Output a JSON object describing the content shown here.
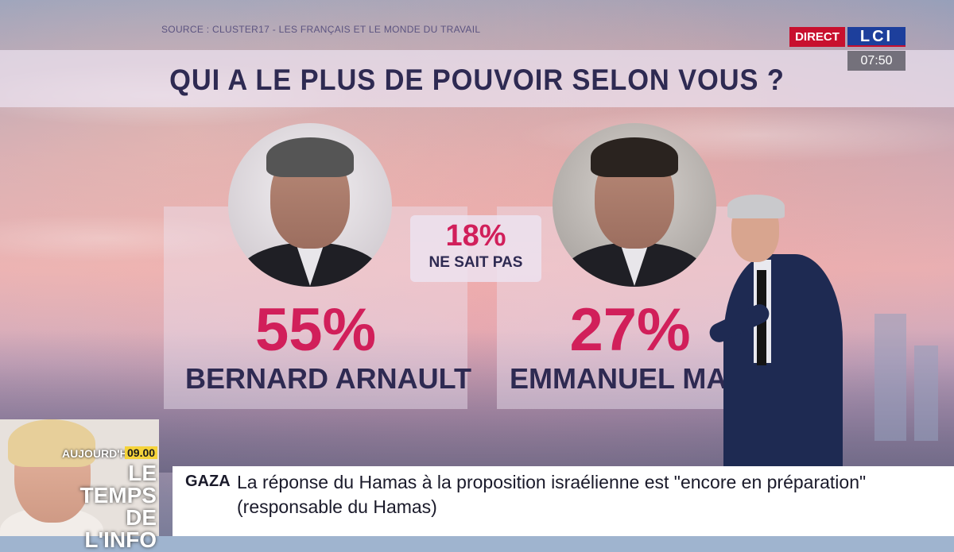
{
  "source": "SOURCE : CLUSTER17 - LES FRANÇAIS ET LE MONDE DU TRAVAIL",
  "title": "QUI A LE PLUS DE POUVOIR SELON VOUS ?",
  "channel": {
    "direct_label": "DIRECT",
    "logo_text": "LCI",
    "time": "07:50",
    "direct_color": "#c8102e",
    "logo_color": "#1d3f9c"
  },
  "poll": {
    "accent_color": "#d11f5a",
    "left": {
      "percent": "55%",
      "name": "BERNARD ARNAULT"
    },
    "middle": {
      "percent": "18%",
      "label": "NE SAIT PAS"
    },
    "right": {
      "percent": "27%",
      "name": "EMMANUEL MACRON"
    }
  },
  "promo": {
    "when": "AUJOURD'HUI",
    "time": "09.00",
    "title": "LE TEMPS DE L'INFO",
    "time_color": "#f5d33a"
  },
  "ticker": {
    "tag": "GAZA",
    "text": "La réponse du Hamas à la proposition israélienne est \"encore en préparation\" (responsable du Hamas)"
  }
}
